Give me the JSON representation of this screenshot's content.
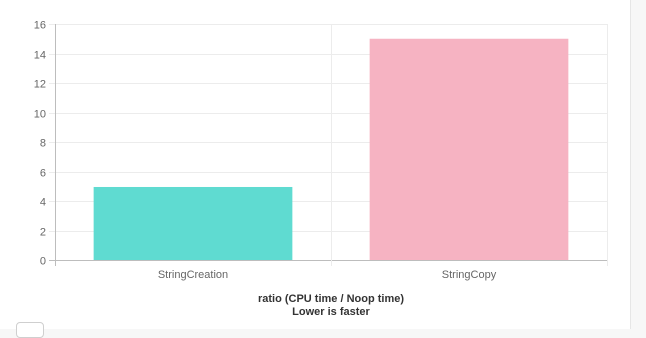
{
  "chart_data": {
    "type": "bar",
    "categories": [
      "StringCreation",
      "StringCopy"
    ],
    "values": [
      4.95,
      15.0
    ],
    "colors": [
      "#5fdbd1",
      "#f6b3c2"
    ],
    "ylim": [
      0,
      16
    ],
    "yticks": [
      0,
      2,
      4,
      6,
      8,
      10,
      12,
      14,
      16
    ],
    "xlabel": "ratio (CPU time / Noop time)",
    "xlabel_sub": "Lower is faster",
    "grid": true,
    "legend": "none"
  }
}
